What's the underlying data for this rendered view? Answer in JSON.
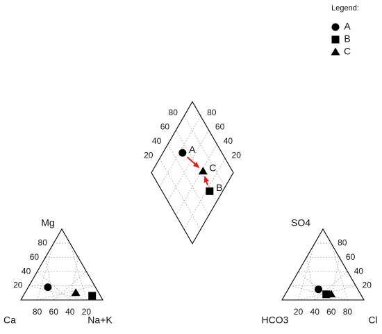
{
  "chart_data": {
    "type": "scatter",
    "subtype": "piper-diagram",
    "grid": true,
    "legend_position": "top-right",
    "legend": {
      "title": "Legend:",
      "entries": [
        {
          "label": "A",
          "marker": "circle"
        },
        {
          "label": "B",
          "marker": "square"
        },
        {
          "label": "C",
          "marker": "triangle"
        }
      ]
    },
    "cation_triangle": {
      "corner_labels": {
        "bottom_left": "Ca",
        "bottom_right": "Na+K",
        "top": "Mg"
      },
      "left_ticks": [
        "20",
        "40",
        "60",
        "80"
      ],
      "bottom_ticks": [
        "80",
        "60",
        "40",
        "20"
      ],
      "points": [
        {
          "sample": "A",
          "Ca": 58,
          "Mg": 18,
          "NaK": 24
        },
        {
          "sample": "B",
          "Ca": 10,
          "Mg": 6,
          "NaK": 84
        },
        {
          "sample": "C",
          "Ca": 28,
          "Mg": 10,
          "NaK": 62
        }
      ]
    },
    "anion_triangle": {
      "corner_labels": {
        "bottom_left": "HCO3",
        "bottom_right": "Cl",
        "top": "SO4"
      },
      "right_ticks": [
        "80",
        "60",
        "40",
        "20"
      ],
      "bottom_ticks": [
        "20",
        "40",
        "60",
        "80"
      ],
      "points": [
        {
          "sample": "A",
          "HCO3": 48,
          "SO4": 15,
          "Cl": 37
        },
        {
          "sample": "B",
          "HCO3": 42,
          "SO4": 8,
          "Cl": 50
        },
        {
          "sample": "C",
          "HCO3": 36,
          "SO4": 8,
          "Cl": 56
        }
      ]
    },
    "diamond": {
      "left_ticks": [
        "20",
        "40",
        "60",
        "80"
      ],
      "right_ticks": [
        "80",
        "60",
        "40",
        "20"
      ],
      "points": [
        {
          "sample": "A",
          "CaMg": 76,
          "SO4Cl": 52
        },
        {
          "sample": "C",
          "CaMg": 38,
          "SO4Cl": 64
        },
        {
          "sample": "B",
          "CaMg": 16,
          "SO4Cl": 58
        }
      ],
      "arrows": [
        {
          "from": "A",
          "to": "C",
          "color": "#e02020"
        },
        {
          "from": "B",
          "to": "C",
          "color": "#e02020"
        }
      ]
    }
  }
}
